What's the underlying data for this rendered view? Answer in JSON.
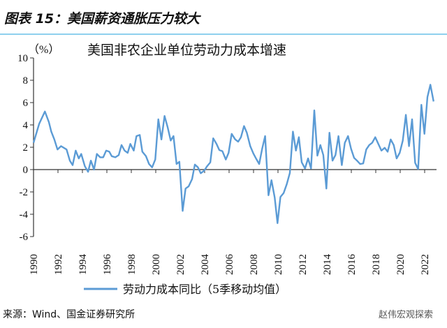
{
  "figure_title": "图表 15：美国薪资通胀压力较大",
  "source": "来源：Wind、国金证券研究所",
  "watermark": "赵伟宏观探索",
  "colors": {
    "line": "#5b9bd5",
    "rule": "#8fd0ee"
  },
  "chart_data": {
    "type": "line",
    "title": "美国非农企业单位劳动力成本增速",
    "ylabel": "（%）",
    "xlabel": "",
    "ylim": [
      -6,
      10
    ],
    "yticks": [
      "10",
      "8",
      "6",
      "4",
      "2",
      "0",
      "-2",
      "-4",
      "-6"
    ],
    "xticks": [
      "1990",
      "1992",
      "1994",
      "1996",
      "1998",
      "2000",
      "2002",
      "2004",
      "2006",
      "2008",
      "2010",
      "2012",
      "2014",
      "2016",
      "2018",
      "2020",
      "2022"
    ],
    "grid": false,
    "legend": {
      "position": "bottom",
      "entries": [
        "劳动力成本同比（5季移动均值）"
      ]
    },
    "series": [
      {
        "name": "劳动力成本同比（5季移动均值）",
        "x": [
          1990.0,
          1990.46,
          1990.93,
          1991.26,
          1991.45,
          1991.7,
          1991.96,
          1992.25,
          1992.7,
          1992.97,
          1993.2,
          1993.45,
          1993.7,
          1993.9,
          1994.2,
          1994.46,
          1994.69,
          1994.95,
          1995.18,
          1995.45,
          1995.7,
          1995.94,
          1996.2,
          1996.4,
          1996.69,
          1996.97,
          1997.2,
          1997.45,
          1997.7,
          1997.92,
          1998.2,
          1998.42,
          1998.69,
          1998.9,
          1999.2,
          1999.45,
          1999.7,
          1999.96,
          2000.21,
          2000.46,
          2000.72,
          2000.97,
          2001.22,
          2001.45,
          2001.7,
          2001.93,
          2002.2,
          2002.44,
          2002.69,
          2002.97,
          2003.2,
          2003.45,
          2003.68,
          2003.96,
          2004.2,
          2004.46,
          2004.7,
          2004.97,
          2005.2,
          2005.45,
          2005.73,
          2005.96,
          2006.21,
          2006.5,
          2006.74,
          2006.97,
          2007.22,
          2007.45,
          2007.73,
          2007.98,
          2008.2,
          2008.46,
          2008.7,
          2008.95,
          2009.22,
          2009.47,
          2009.73,
          2009.96,
          2010.2,
          2010.46,
          2010.72,
          2010.97,
          2011.22,
          2011.47,
          2011.71,
          2011.94,
          2012.21,
          2012.46,
          2012.7,
          2012.97,
          2013.22,
          2013.47,
          2013.71,
          2013.96,
          2014.21,
          2014.46,
          2014.7,
          2014.95,
          2015.22,
          2015.47,
          2015.73,
          2015.98,
          2016.23,
          2016.47,
          2016.72,
          2016.97,
          2017.22,
          2017.47,
          2017.71,
          2017.96,
          2018.21,
          2018.46,
          2018.73,
          2018.97,
          2019.22,
          2019.47,
          2019.71,
          2019.96,
          2020.21,
          2020.46,
          2020.72,
          2020.97,
          2021.22,
          2021.47,
          2021.73,
          2021.98,
          2022.23,
          2022.47,
          2022.73
        ],
        "values": [
          2.4,
          4.1,
          5.2,
          4.25,
          3.4,
          2.7,
          1.8,
          2.1,
          1.8,
          0.8,
          0.4,
          1.7,
          1.0,
          1.4,
          0.3,
          -0.2,
          0.8,
          0.0,
          1.4,
          1.1,
          1.1,
          1.7,
          1.6,
          1.2,
          1.1,
          1.3,
          2.2,
          1.7,
          1.5,
          2.3,
          1.7,
          3.0,
          3.1,
          1.6,
          1.2,
          0.5,
          0.2,
          0.9,
          4.5,
          2.7,
          4.8,
          3.8,
          2.6,
          3.0,
          0.5,
          0.7,
          -3.7,
          -1.7,
          -1.5,
          -0.85,
          0.45,
          0.2,
          -0.33,
          -0.1,
          0.3,
          0.65,
          2.8,
          2.3,
          1.75,
          1.65,
          0.9,
          1.5,
          3.2,
          2.7,
          2.5,
          2.9,
          3.9,
          3.3,
          2.1,
          1.45,
          1.0,
          0.5,
          1.85,
          3.0,
          -2.3,
          -0.95,
          -2.5,
          -4.8,
          -2.45,
          -2.1,
          -1.3,
          -0.3,
          3.4,
          1.7,
          2.9,
          0.65,
          0.1,
          1.0,
          0.1,
          5.3,
          1.25,
          2.2,
          1.3,
          -1.7,
          3.3,
          0.8,
          1.3,
          3.0,
          0.4,
          2.4,
          3.0,
          1.85,
          1.05,
          0.8,
          0.5,
          0.55,
          1.8,
          2.2,
          2.4,
          2.9,
          2.3,
          1.7,
          1.95,
          1.6,
          2.7,
          2.2,
          1.0,
          1.5,
          2.6,
          4.9,
          2.1,
          4.5,
          0.6,
          0.05,
          5.8,
          3.2,
          6.5,
          7.6,
          6.1
        ]
      }
    ]
  }
}
